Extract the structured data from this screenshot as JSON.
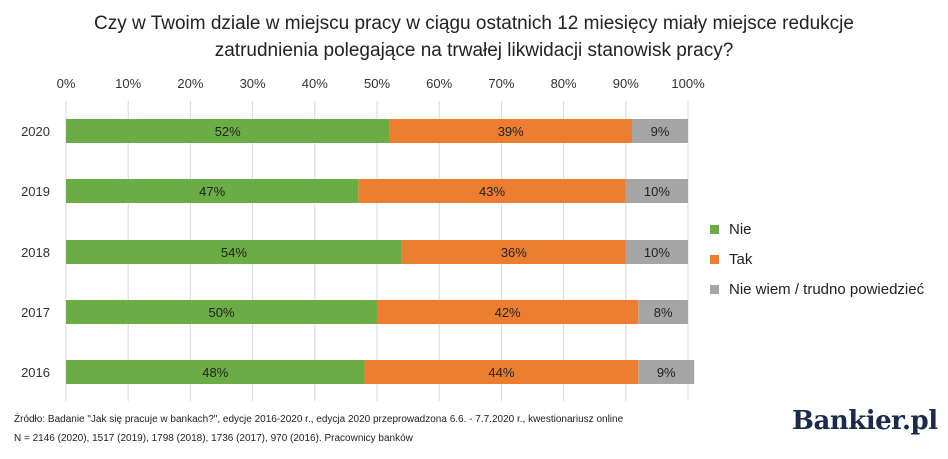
{
  "title_line1": "Czy w Twoim dziale w miejscu pracy w ciągu ostatnich 12 miesięcy miały miejsce redukcje",
  "title_line2": "zatrudnienia polegające na trwałej likwidacji stanowisk pracy?",
  "source_line1": "Źródło: Badanie \"Jak się pracuje w bankach?\", edycje 2016-2020 r., edycja 2020 przeprowadzona 6.6. - 7.7.2020 r., kwestionariusz online",
  "source_line2": "N = 2146  (2020), 1517 (2019), 1798 (2018), 1736 (2017), 970 (2016). Pracownicy banków",
  "logo": "Bankier.pl",
  "colors": {
    "nie": "#6aad45",
    "tak": "#ed7d31",
    "nie_wiem": "#a5a5a5",
    "grid": "#d9d9d9"
  },
  "chart_data": {
    "type": "bar",
    "orientation": "horizontal",
    "stacked": true,
    "categories": [
      "2020",
      "2019",
      "2018",
      "2017",
      "2016"
    ],
    "series": [
      {
        "name": "Nie",
        "values": [
          52,
          47,
          54,
          50,
          48
        ]
      },
      {
        "name": "Tak",
        "values": [
          39,
          43,
          36,
          42,
          44
        ]
      },
      {
        "name": "Nie wiem / trudno powiedzieć",
        "values": [
          9,
          10,
          10,
          8,
          9
        ]
      }
    ],
    "x_ticks": [
      "0%",
      "10%",
      "20%",
      "30%",
      "40%",
      "50%",
      "60%",
      "70%",
      "80%",
      "90%",
      "100%"
    ],
    "xlim": [
      0,
      100
    ],
    "grid": true,
    "legend_position": "right"
  }
}
